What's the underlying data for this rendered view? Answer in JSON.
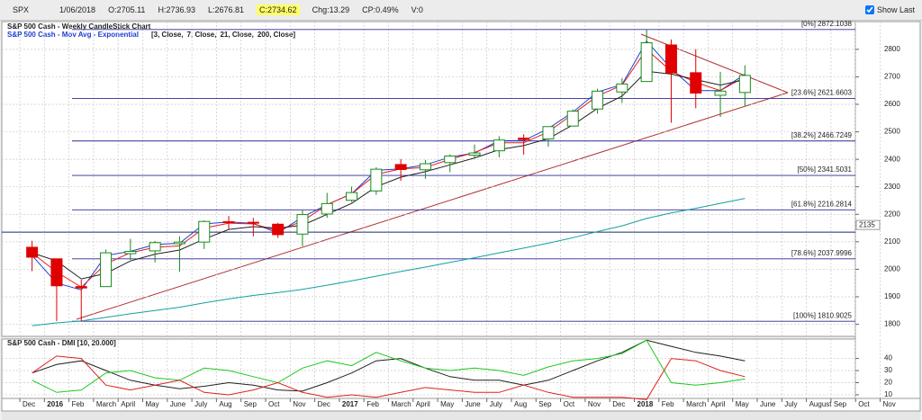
{
  "header": {
    "symbol": "SPX",
    "date": "1/06/2018",
    "open": "O:2705.11",
    "high": "H:2736.93",
    "low": "L:2676.81",
    "close": "C:2734.62",
    "change": "Chg:13.29",
    "change_pct": "CP:0.49%",
    "volume": "V:0",
    "show_last": "Show Last"
  },
  "chart_data": [
    {
      "type": "candlestick",
      "title": "S&P 500 Cash - Weekly CandleStick Chart",
      "ma_title": "S&P 500 Cash - Mov Avg - Exponential",
      "categories": [
        "Dec",
        "2016",
        "Feb",
        "March",
        "April",
        "May",
        "June",
        "July",
        "Aug",
        "Sep",
        "Oct",
        "Nov",
        "Dec",
        "2017",
        "Feb",
        "March",
        "April",
        "May",
        "June",
        "July",
        "Aug",
        "Sep",
        "Oct",
        "Nov",
        "Dec",
        "2018",
        "Feb",
        "March",
        "April",
        "May",
        "June",
        "July",
        "August",
        "Sep",
        "Oct",
        "Nov"
      ],
      "open": [
        2080,
        2038,
        1937,
        1937,
        2057,
        2067,
        2093,
        2099,
        2173,
        2171,
        2164,
        2128,
        2201,
        2251,
        2285,
        2381,
        2362,
        2388,
        2415,
        2431,
        2477,
        2474,
        2521,
        2583,
        2645,
        2683,
        2816,
        2715,
        2633,
        2643,
        null,
        null,
        null,
        null,
        null,
        null
      ],
      "high": [
        2104,
        2038,
        1962,
        2072,
        2111,
        2103,
        2120,
        2178,
        2194,
        2187,
        2169,
        2214,
        2278,
        2301,
        2371,
        2401,
        2398,
        2418,
        2454,
        2484,
        2491,
        2519,
        2582,
        2657,
        2695,
        2872,
        2836,
        2801,
        2718,
        2742,
        null,
        null,
        null,
        null,
        null,
        null
      ],
      "low": [
        1993,
        1812,
        1810,
        1937,
        2034,
        2025,
        1991,
        2074,
        2147,
        2120,
        2114,
        2084,
        2187,
        2245,
        2271,
        2322,
        2329,
        2353,
        2405,
        2407,
        2417,
        2446,
        2520,
        2566,
        2605,
        2683,
        2533,
        2586,
        2554,
        2594,
        null,
        null,
        null,
        null,
        null,
        null
      ],
      "close": [
        2044,
        1940,
        1932,
        2060,
        2065,
        2097,
        2099,
        2174,
        2171,
        2168,
        2126,
        2199,
        2239,
        2279,
        2364,
        2363,
        2384,
        2412,
        2423,
        2470,
        2472,
        2519,
        2575,
        2648,
        2674,
        2824,
        2714,
        2641,
        2648,
        2705,
        null,
        null,
        null,
        null,
        null,
        null
      ],
      "up_color": "#1a8a1a",
      "down_color": "#e00000",
      "series": [
        {
          "name": "[3, Close,",
          "color": "#1f3fd0",
          "values": [
            2050,
            1950,
            1925,
            2050,
            2065,
            2090,
            2095,
            2165,
            2172,
            2167,
            2132,
            2190,
            2235,
            2275,
            2360,
            2365,
            2380,
            2408,
            2423,
            2468,
            2468,
            2512,
            2572,
            2645,
            2672,
            2830,
            2730,
            2650,
            2650,
            2710,
            null,
            null,
            null,
            null,
            null,
            null
          ]
        },
        {
          "name": "7, Close,",
          "color": "#e02020",
          "values": [
            2060,
            1990,
            1935,
            2020,
            2060,
            2080,
            2085,
            2150,
            2168,
            2165,
            2140,
            2175,
            2235,
            2275,
            2345,
            2365,
            2370,
            2400,
            2425,
            2460,
            2460,
            2500,
            2565,
            2630,
            2670,
            2800,
            2720,
            2680,
            2650,
            2700,
            null,
            null,
            null,
            null,
            null,
            null
          ]
        },
        {
          "name": "21, Close,",
          "color": "#202020",
          "values": [
            2060,
            2030,
            1965,
            1985,
            2030,
            2055,
            2070,
            2110,
            2145,
            2155,
            2150,
            2160,
            2200,
            2240,
            2300,
            2335,
            2355,
            2380,
            2405,
            2435,
            2450,
            2475,
            2525,
            2585,
            2630,
            2720,
            2710,
            2690,
            2670,
            2690,
            null,
            null,
            null,
            null,
            null,
            null
          ]
        },
        {
          "name": "200, Close]",
          "color": "#13a0a0",
          "values": [
            1795,
            1805,
            1812,
            1825,
            1838,
            1850,
            1862,
            1878,
            1892,
            1905,
            1915,
            1927,
            1942,
            1958,
            1975,
            1992,
            2008,
            2025,
            2042,
            2060,
            2077,
            2095,
            2115,
            2137,
            2158,
            2185,
            2205,
            2222,
            2240,
            2258,
            null,
            null,
            null,
            null,
            null,
            null
          ]
        }
      ],
      "levels": [
        {
          "label": "[0%] 2872.1038",
          "value": 2872.1038
        },
        {
          "label": "[23.6%] 2621.6603",
          "value": 2621.6603
        },
        {
          "label": "[38.2%] 2466.7249",
          "value": 2466.7249
        },
        {
          "label": "[50%] 2341.5031",
          "value": 2341.5031
        },
        {
          "label": "[61.8%] 2216.2814",
          "value": 2216.2814
        },
        {
          "label": "[78.6%] 2037.9996",
          "value": 2037.9996
        },
        {
          "label": "[100%] 1810.9025",
          "value": 1810.9025
        }
      ],
      "level_color": "#2a2a9a",
      "marker_level": 2135,
      "ylim": [
        1756,
        2901
      ],
      "yticks": [
        1800,
        1900,
        2000,
        2100,
        2200,
        2300,
        2400,
        2500,
        2600,
        2700,
        2800
      ],
      "grid": true
    },
    {
      "type": "line",
      "title": "S&P 500 Cash - DMI [10, 20.000]",
      "series": [
        {
          "color": "#202020",
          "values": [
            28,
            35,
            38,
            30,
            22,
            18,
            15,
            17,
            20,
            18,
            14,
            13,
            20,
            28,
            38,
            40,
            32,
            25,
            22,
            22,
            18,
            22,
            30,
            38,
            45,
            55,
            50,
            45,
            42,
            38,
            null,
            null,
            null,
            null,
            null,
            null
          ]
        },
        {
          "color": "#1ec81e",
          "values": [
            22,
            12,
            14,
            28,
            30,
            24,
            22,
            32,
            30,
            25,
            20,
            32,
            38,
            34,
            45,
            38,
            32,
            30,
            32,
            30,
            26,
            33,
            38,
            40,
            44,
            55,
            20,
            18,
            20,
            23,
            null,
            null,
            null,
            null,
            null,
            null
          ]
        },
        {
          "color": "#e02020",
          "values": [
            28,
            42,
            40,
            18,
            14,
            18,
            22,
            12,
            10,
            14,
            20,
            12,
            8,
            10,
            8,
            12,
            16,
            14,
            12,
            12,
            18,
            12,
            8,
            8,
            8,
            6,
            40,
            38,
            30,
            25,
            null,
            null,
            null,
            null,
            null,
            null
          ]
        }
      ],
      "ylim": [
        7,
        56
      ],
      "yticks": [
        10,
        20,
        30,
        40
      ],
      "grid": true
    }
  ]
}
